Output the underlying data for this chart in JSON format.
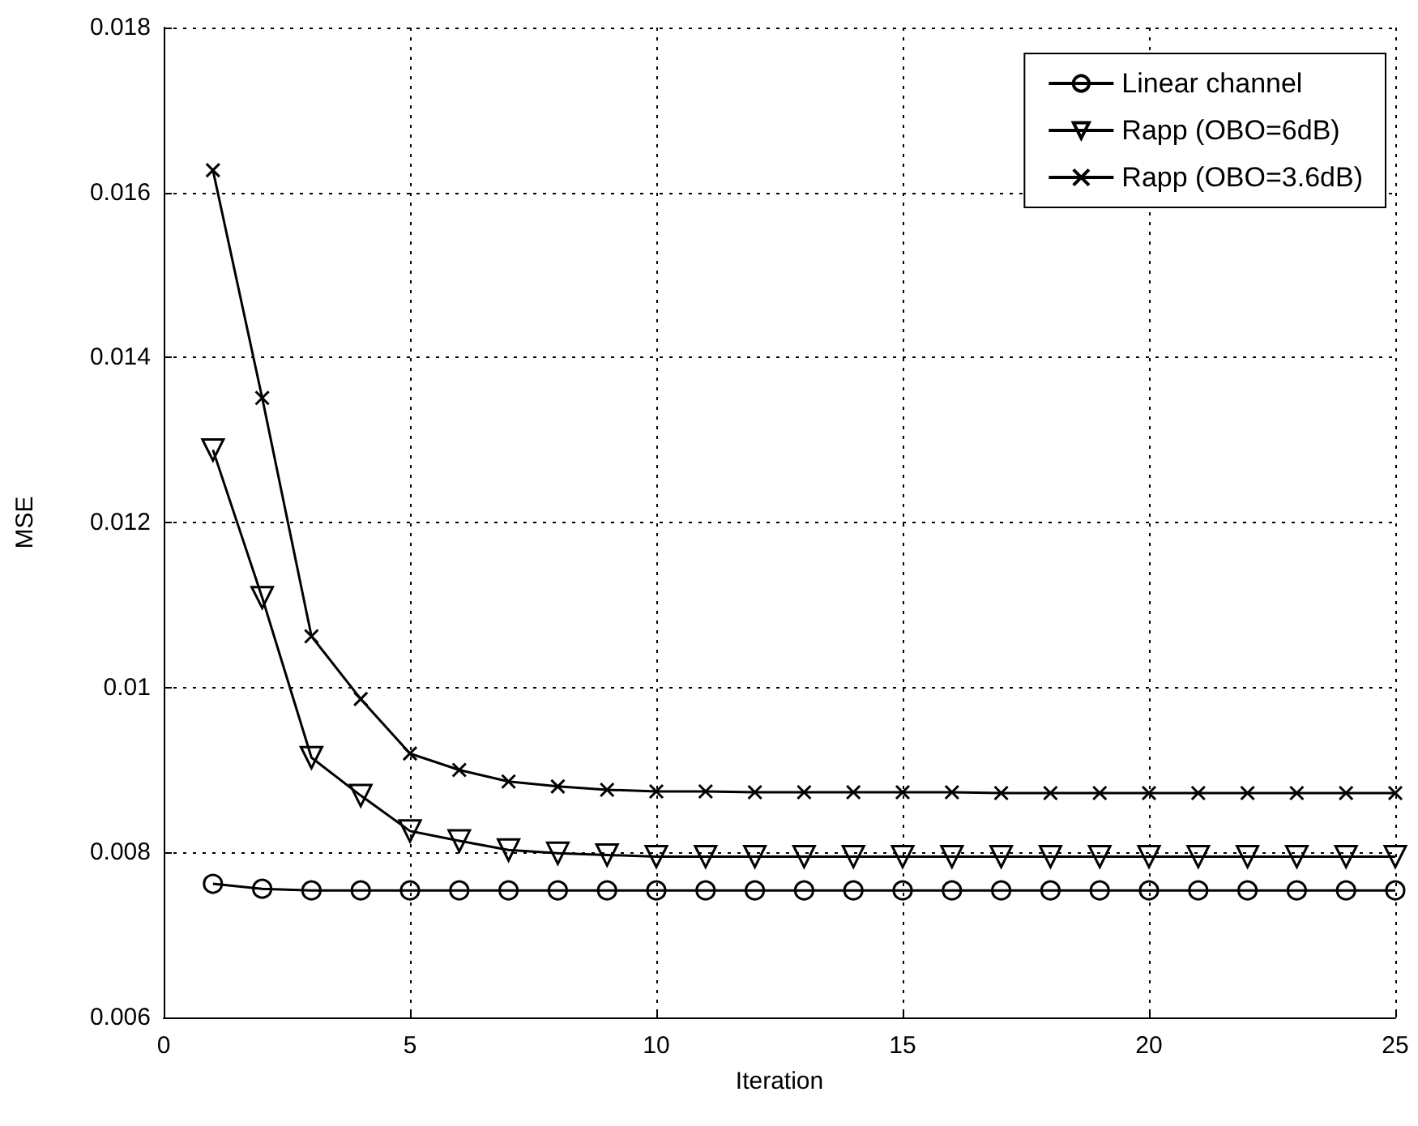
{
  "chart_data": {
    "type": "line",
    "xlabel": "Iteration",
    "ylabel": "MSE",
    "x": [
      1,
      2,
      3,
      4,
      5,
      6,
      7,
      8,
      9,
      10,
      11,
      12,
      13,
      14,
      15,
      16,
      17,
      18,
      19,
      20,
      21,
      22,
      23,
      24,
      25
    ],
    "series": [
      {
        "name": "Linear channel",
        "color": "#000000",
        "marker": "circle",
        "values": [
          0.00762,
          0.00756,
          0.00754,
          0.00754,
          0.00754,
          0.00754,
          0.00754,
          0.00754,
          0.00754,
          0.00754,
          0.00754,
          0.00754,
          0.00754,
          0.00754,
          0.00754,
          0.00754,
          0.00754,
          0.00754,
          0.00754,
          0.00754,
          0.00754,
          0.00754,
          0.00754,
          0.00754,
          0.00754
        ]
      },
      {
        "name": "Rapp (OBO=6dB)",
        "color": "#000000",
        "marker": "triangle",
        "values": [
          0.01288,
          0.01109,
          0.00915,
          0.00869,
          0.00826,
          0.00814,
          0.00803,
          0.00799,
          0.00797,
          0.00795,
          0.00795,
          0.00795,
          0.00795,
          0.00795,
          0.00795,
          0.00795,
          0.00795,
          0.00795,
          0.00795,
          0.00795,
          0.00795,
          0.00795,
          0.00795,
          0.00795,
          0.00795
        ]
      },
      {
        "name": "Rapp (OBO=3.6dB)",
        "color": "#000000",
        "marker": "cross",
        "values": [
          0.01627,
          0.01351,
          0.01062,
          0.00986,
          0.0092,
          0.009,
          0.00886,
          0.0088,
          0.00876,
          0.00874,
          0.00874,
          0.00873,
          0.00873,
          0.00873,
          0.00873,
          0.00873,
          0.00872,
          0.00872,
          0.00872,
          0.00872,
          0.00872,
          0.00872,
          0.00872,
          0.00872,
          0.00872
        ]
      }
    ],
    "xlim": [
      0,
      25
    ],
    "xticks": [
      0,
      5,
      10,
      15,
      20,
      25
    ],
    "ylim": [
      0.006,
      0.018
    ],
    "yticks": [
      0.006,
      0.008,
      0.01,
      0.012,
      0.014,
      0.016,
      0.018
    ],
    "grid": true,
    "legend": "top right",
    "line_style": "solid"
  }
}
